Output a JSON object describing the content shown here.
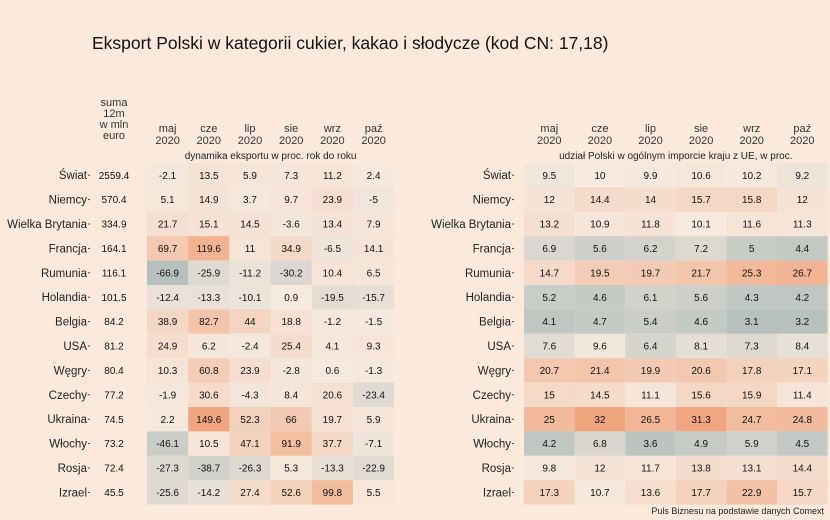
{
  "title": "Eksport Polski w kategorii cukier, kakao i słodycze (kod CN: 17,18)",
  "source": "Puls Biznesu na podstawie danych Comext",
  "colors": {
    "background": "#fbeadb",
    "low": "#b6c1bd",
    "mid": "#f6e9de",
    "high": "#f0a57e"
  },
  "chart_data": [
    {
      "type": "heatmap",
      "subtitle": "dynamika eksportu w proc. rok do roku",
      "sum_header": [
        "suma",
        "12m",
        "w mln",
        "euro"
      ],
      "columns": [
        [
          "maj",
          "2020"
        ],
        [
          "cze",
          "2020"
        ],
        [
          "lip",
          "2020"
        ],
        [
          "sie",
          "2020"
        ],
        [
          "wrz",
          "2020"
        ],
        [
          "paź",
          "2020"
        ]
      ],
      "rows": [
        "Świat",
        "Niemcy",
        "Wielka Brytania",
        "Francja",
        "Rumunia",
        "Holandia",
        "Belgia",
        "USA",
        "Węgry",
        "Czechy",
        "Ukraina",
        "Włochy",
        "Rosja",
        "Izrael"
      ],
      "sums": [
        "2559.4",
        "570.4",
        "334.9",
        "164.1",
        "116.1",
        "101.5",
        "84.2",
        "81.2",
        "80.4",
        "77.2",
        "74.5",
        "73.2",
        "72.4",
        "45.5"
      ],
      "values": [
        [
          -2.1,
          13.5,
          5.9,
          7.3,
          11.2,
          2.4
        ],
        [
          5.1,
          14.9,
          3.7,
          9.7,
          23.9,
          -5
        ],
        [
          21.7,
          15.1,
          14.5,
          -3.6,
          13.4,
          7.9
        ],
        [
          69.7,
          119.6,
          11,
          34.9,
          -6.5,
          14.1
        ],
        [
          -66.9,
          -25.9,
          -11.2,
          -30.2,
          10.4,
          6.5
        ],
        [
          -12.4,
          -13.3,
          -10.1,
          0.9,
          -19.5,
          -15.7
        ],
        [
          38.9,
          82.7,
          44,
          18.8,
          -1.2,
          -1.5
        ],
        [
          24.9,
          6.2,
          -2.4,
          25.4,
          4.1,
          9.3
        ],
        [
          10.3,
          60.8,
          23.9,
          -2.8,
          0.6,
          -1.3
        ],
        [
          -1.9,
          30.6,
          -4.3,
          8.4,
          20.6,
          -23.4
        ],
        [
          2.2,
          149.6,
          52.3,
          66,
          19.7,
          5.9
        ],
        [
          -46.1,
          10.5,
          47.1,
          91.9,
          37.7,
          -7.1
        ],
        [
          -27.3,
          -38.7,
          -26.3,
          5.3,
          -13.3,
          -22.9
        ],
        [
          -25.6,
          -14.2,
          27.4,
          52.6,
          99.8,
          5.5
        ]
      ]
    },
    {
      "type": "heatmap",
      "subtitle": "udział Polski w ogólnym imporcie kraju z UE, w proc.",
      "columns": [
        [
          "maj",
          "2020"
        ],
        [
          "cze",
          "2020"
        ],
        [
          "lip",
          "2020"
        ],
        [
          "sie",
          "2020"
        ],
        [
          "wrz",
          "2020"
        ],
        [
          "paź",
          "2020"
        ]
      ],
      "rows": [
        "Świat",
        "Niemcy",
        "Wielka Brytania",
        "Francja",
        "Rumunia",
        "Holandia",
        "Belgia",
        "USA",
        "Węgry",
        "Czechy",
        "Ukraina",
        "Włochy",
        "Rosja",
        "Izrael"
      ],
      "values": [
        [
          9.5,
          10,
          9.9,
          10.6,
          10.2,
          9.2
        ],
        [
          12,
          14.4,
          14,
          15.7,
          15.8,
          12
        ],
        [
          13.2,
          10.9,
          11.8,
          10.1,
          11.6,
          11.3
        ],
        [
          6.9,
          5.6,
          6.2,
          7.2,
          5,
          4.4
        ],
        [
          14.7,
          19.5,
          19.7,
          21.7,
          25.3,
          26.7
        ],
        [
          5.2,
          4.6,
          6.1,
          5.6,
          4.3,
          4.2
        ],
        [
          4.1,
          4.7,
          5.4,
          4.6,
          3.1,
          3.2
        ],
        [
          7.6,
          9.6,
          6.4,
          8.1,
          7.3,
          8.4
        ],
        [
          20.7,
          21.4,
          19.9,
          20.6,
          17.8,
          17.1
        ],
        [
          15,
          14.5,
          11.1,
          15.6,
          15.9,
          11.4
        ],
        [
          25,
          32,
          26.5,
          31.3,
          24.7,
          24.8
        ],
        [
          4.2,
          6.8,
          3.6,
          4.9,
          5.9,
          4.5
        ],
        [
          9.8,
          12,
          11.7,
          13.8,
          13.1,
          14.4
        ],
        [
          17.3,
          10.7,
          13.6,
          17.7,
          22.9,
          15.7
        ]
      ]
    }
  ]
}
